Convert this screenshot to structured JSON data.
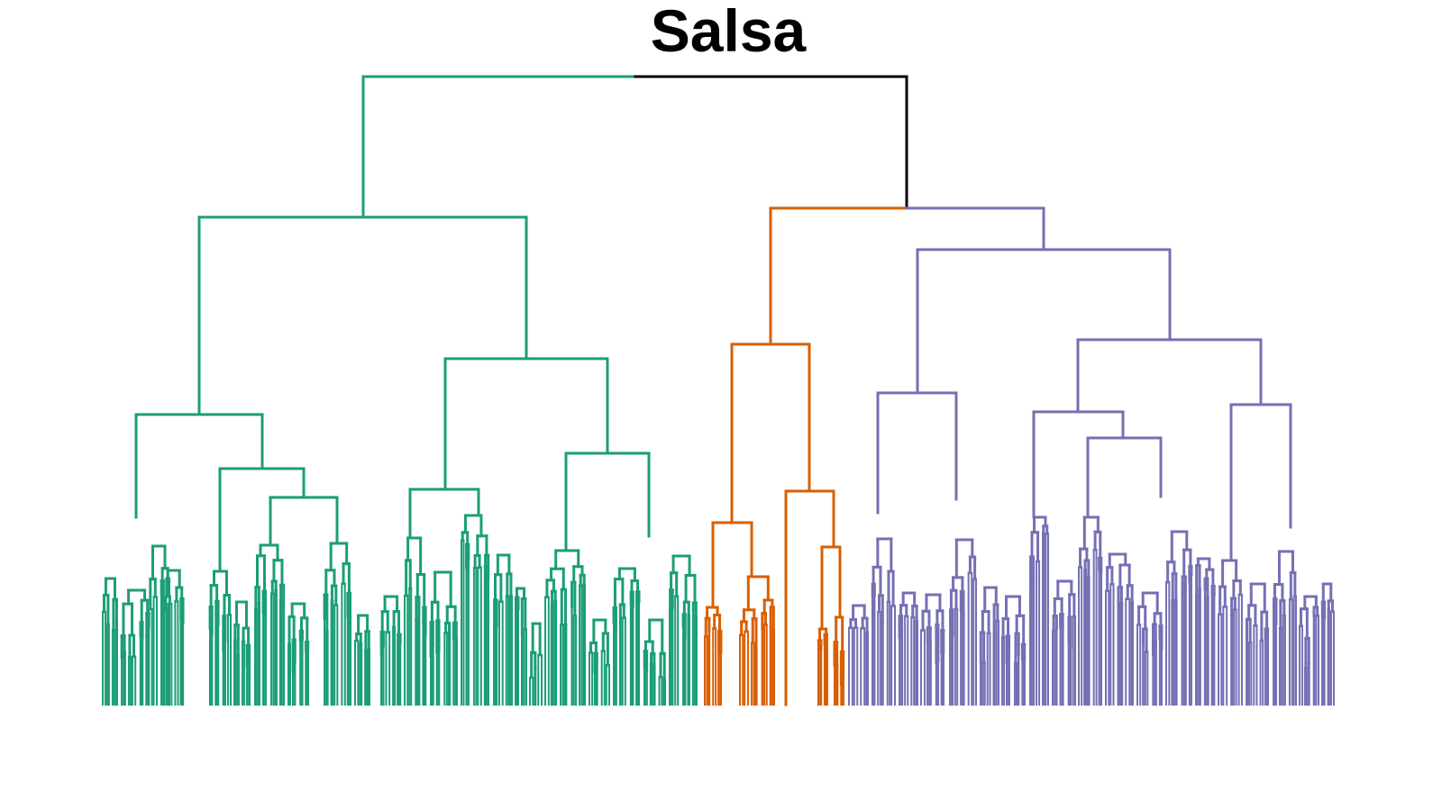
{
  "title": "Salsa",
  "colors": {
    "root": "#000000",
    "cluster_1": "#1b9e77",
    "cluster_2": "#d95f02",
    "cluster_3": "#7570b3"
  },
  "chart_data": {
    "type": "dendrogram",
    "title": "Salsa",
    "clusters": [
      {
        "color": "#1b9e77",
        "leaf_share": 0.485
      },
      {
        "color": "#d95f02",
        "leaf_share": 0.12
      },
      {
        "color": "#7570b3",
        "leaf_share": 0.395
      }
    ],
    "branches": [
      0,
      1,
      1
    ],
    "merge_heights": {
      "root": 1.0,
      "cluster_1": 0.78,
      "cluster_2_3": 0.79,
      "cluster_3": 0.72,
      "cluster_2": 0.57
    },
    "axes_shown": false
  }
}
